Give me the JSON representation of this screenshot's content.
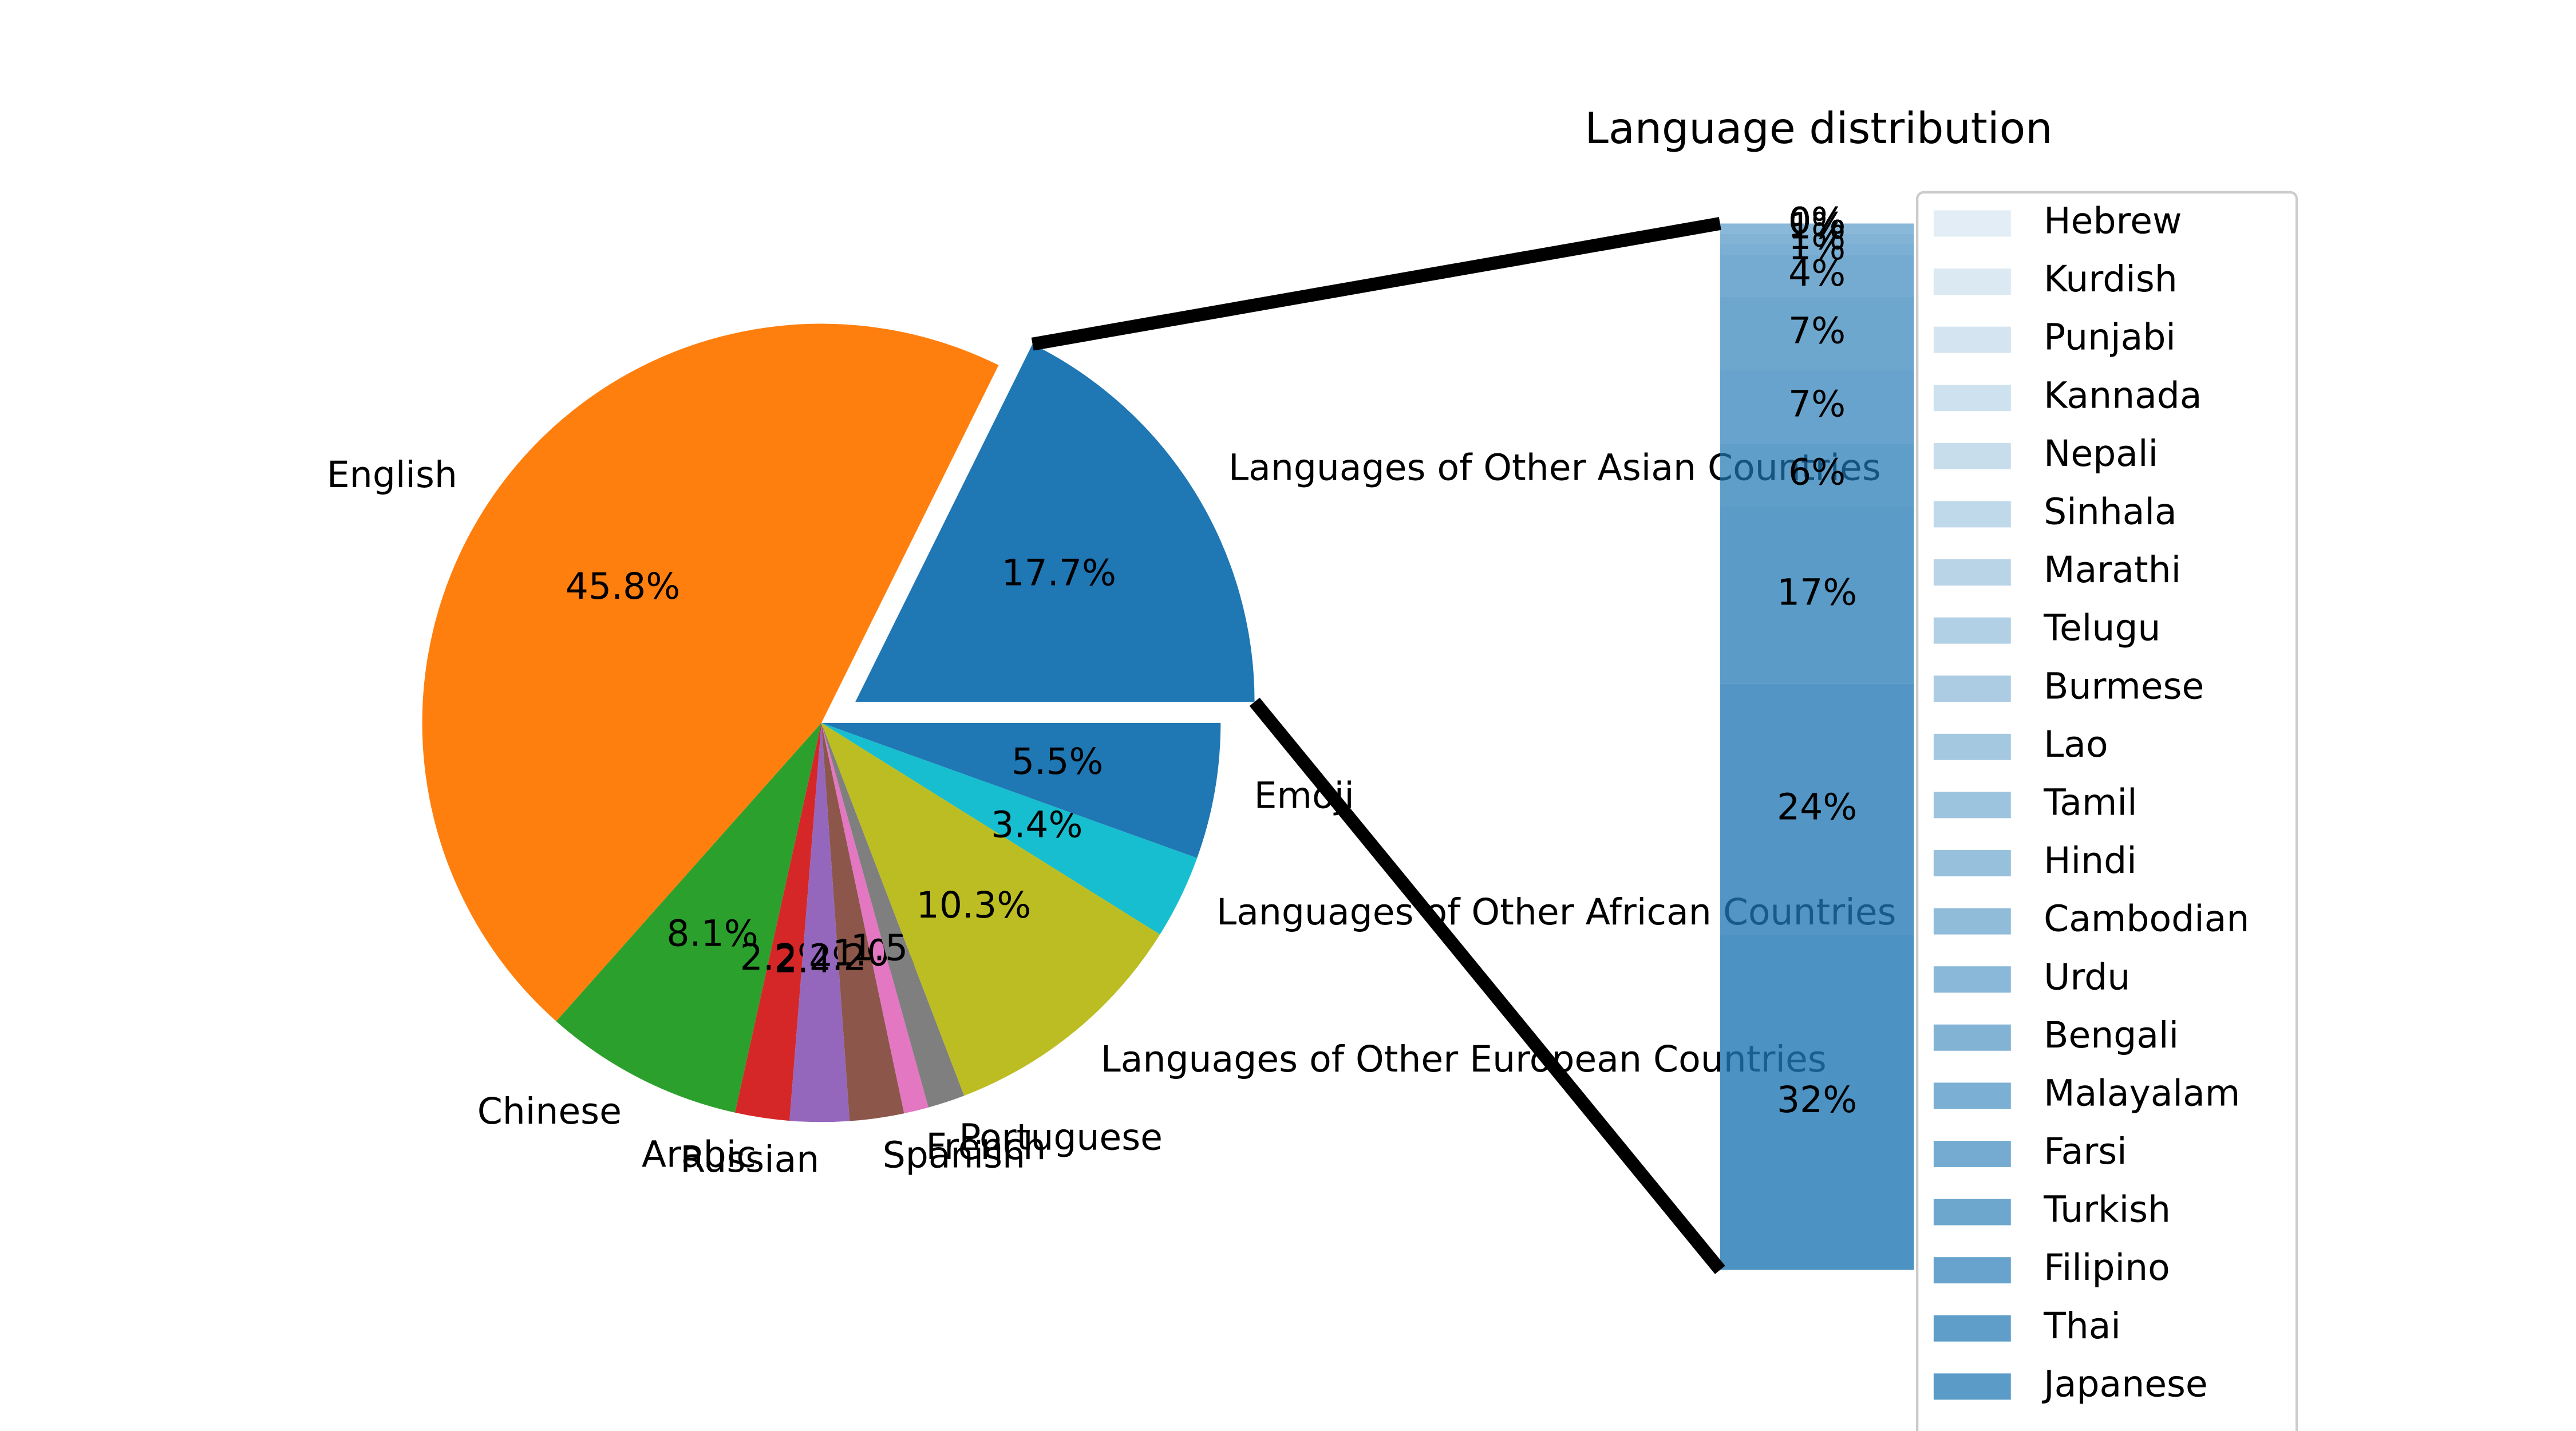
{
  "chart_data": [
    {
      "type": "pie",
      "categories": [
        "Languages of Other Asian Countries",
        "English",
        "Chinese",
        "Arabic",
        "Russian",
        "Spanish",
        "French",
        "Portuguese",
        "Languages of Other European Countries",
        "Languages of Other African Countries",
        "Emoji"
      ],
      "values": [
        17.7,
        45.8,
        8.1,
        2.2,
        2.4,
        2.2,
        1.0,
        1.5,
        10.3,
        3.4,
        5.5
      ],
      "value_labels": [
        "17.7%",
        "45.8%",
        "8.1%",
        "2.2%",
        "2.4%",
        "2.2%",
        "1.0%",
        "1.5%",
        "10.3%",
        "3.4%",
        "5.5%"
      ],
      "colors": [
        "#1f77b4",
        "#ff7f0e",
        "#2ca02c",
        "#d62728",
        "#9467bd",
        "#8c564b",
        "#e377c2",
        "#7f7f7f",
        "#bcbd22",
        "#17becf",
        "#1f77b4"
      ]
    },
    {
      "type": "stacked-bar",
      "title": "Language distribution",
      "color": "#1f77b4",
      "segments": [
        {
          "name": "Hebrew",
          "value": 0,
          "value_label": "0%"
        },
        {
          "name": "Kurdish",
          "value": 0,
          "value_label": "0%"
        },
        {
          "name": "Punjabi",
          "value": 0,
          "value_label": "0%"
        },
        {
          "name": "Kannada",
          "value": 0,
          "value_label": "0%"
        },
        {
          "name": "Nepali",
          "value": 0,
          "value_label": "0%"
        },
        {
          "name": "Sinhala",
          "value": 0,
          "value_label": "0%"
        },
        {
          "name": "Marathi",
          "value": 0,
          "value_label": "0%"
        },
        {
          "name": "Telugu",
          "value": 0,
          "value_label": "0%"
        },
        {
          "name": "Burmese",
          "value": 0,
          "value_label": "0%"
        },
        {
          "name": "Lao",
          "value": 0,
          "value_label": "0%"
        },
        {
          "name": "Tamil",
          "value": 0,
          "value_label": "0%"
        },
        {
          "name": "Hindi",
          "value": 0,
          "value_label": "0%"
        },
        {
          "name": "Cambodian",
          "value": 0,
          "value_label": "0%"
        },
        {
          "name": "Urdu",
          "value": 1,
          "value_label": "1%"
        },
        {
          "name": "Bengali",
          "value": 1,
          "value_label": "1%"
        },
        {
          "name": "Malayalam",
          "value": 1,
          "value_label": "1%"
        },
        {
          "name": "Farsi",
          "value": 4,
          "value_label": "4%"
        },
        {
          "name": "Turkish",
          "value": 7,
          "value_label": "7%"
        },
        {
          "name": "Filipino",
          "value": 7,
          "value_label": "7%"
        },
        {
          "name": "Thai",
          "value": 6,
          "value_label": "6%"
        },
        {
          "name": "Japanese",
          "value": 17,
          "value_label": "17%"
        },
        {
          "value": 24,
          "value_label": "24%"
        },
        {
          "value": 32,
          "value_label": "32%"
        }
      ]
    }
  ]
}
